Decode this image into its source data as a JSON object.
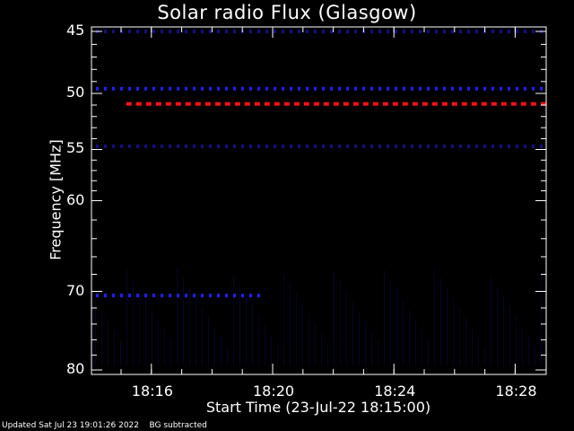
{
  "chart_data": {
    "type": "heatmap",
    "title": "Solar radio Flux (Glasgow)",
    "ylabel": "Frequency [MHz]",
    "xlabel": "Start Time (23-Jul-22 18:15:00)",
    "ylim": [
      45,
      80
    ],
    "yticks": [
      45,
      50,
      55,
      60,
      70,
      80
    ],
    "y_scale": "log",
    "xticks": [
      "18:16",
      "18:20",
      "18:24",
      "18:28"
    ],
    "x_range_minutes": [
      18.25,
      18.5
    ],
    "note_background": "BG subtracted",
    "bands": [
      {
        "freq": 50.9,
        "start": "18:16",
        "end": "18:31",
        "color": "#ff1010",
        "intensity": "high"
      },
      {
        "freq": 49.6,
        "start": "18:15",
        "end": "18:31",
        "color": "#2020ff",
        "intensity": "medium"
      },
      {
        "freq": 70.5,
        "start": "18:15",
        "end": "18:19",
        "color": "#2020ff",
        "intensity": "medium"
      },
      {
        "freq": 54.7,
        "start": "18:15",
        "end": "18:31",
        "color": "#101088",
        "intensity": "low"
      },
      {
        "freq": 45.0,
        "start": "18:15",
        "end": "18:31",
        "color": "#101088",
        "intensity": "low"
      }
    ]
  },
  "footer": {
    "updated": "Updated Sat Jul 23 19:01:26 2022",
    "bg": "BG subtracted"
  }
}
